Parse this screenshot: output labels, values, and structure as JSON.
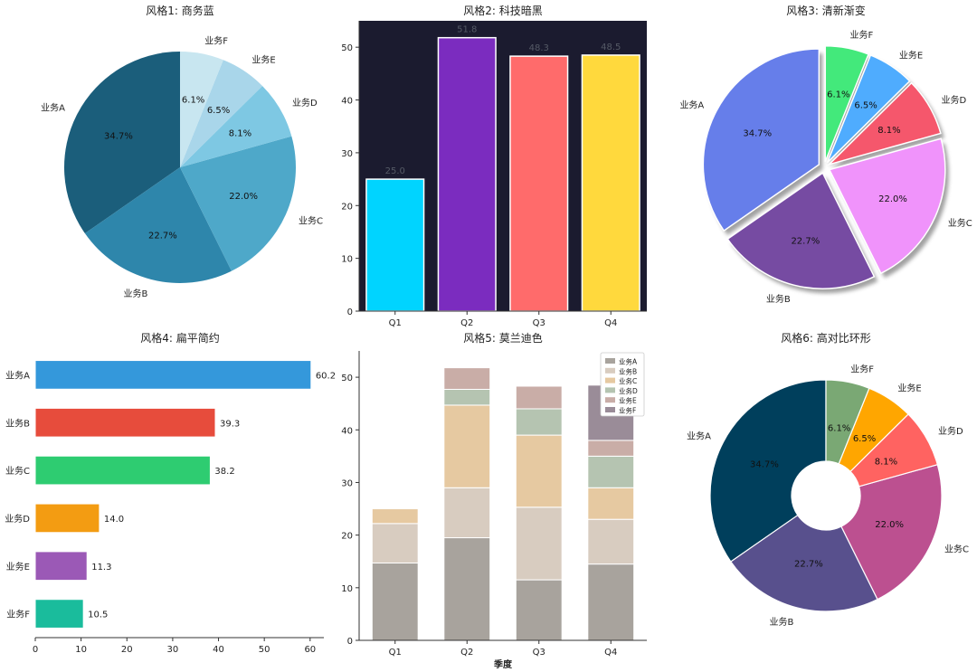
{
  "chart_data": [
    {
      "type": "pie",
      "title": "风格1: 商务蓝",
      "labels": [
        "业务A",
        "业务B",
        "业务C",
        "业务D",
        "业务E",
        "业务F"
      ],
      "values": [
        34.7,
        22.7,
        22.0,
        8.1,
        6.5,
        6.1
      ],
      "pct_labels": [
        "34.7%",
        "22.7%",
        "22.0%",
        "8.1%",
        "6.5%",
        "6.1%"
      ],
      "colors": [
        "#1b5e7b",
        "#2e86ab",
        "#4ea8c9",
        "#7ec8e3",
        "#a9d6ea",
        "#c8e6f0"
      ]
    },
    {
      "type": "bar",
      "title": "风格2: 科技暗黑",
      "categories": [
        "Q1",
        "Q2",
        "Q3",
        "Q4"
      ],
      "values": [
        25.0,
        51.8,
        48.3,
        48.5
      ],
      "value_labels": [
        "25.0",
        "51.8",
        "48.3",
        "48.5"
      ],
      "colors": [
        "#00d4ff",
        "#7b2cbf",
        "#ff6b6b",
        "#ffd93d"
      ],
      "background": "#1b1b2f",
      "ylim": [
        0,
        55
      ],
      "yticks": [
        "0",
        "10",
        "20",
        "30",
        "40",
        "50"
      ]
    },
    {
      "type": "pie",
      "title": "风格3: 清新渐变",
      "labels": [
        "业务A",
        "业务B",
        "业务C",
        "业务D",
        "业务E",
        "业务F"
      ],
      "values": [
        34.7,
        22.7,
        22.0,
        8.1,
        6.5,
        6.1
      ],
      "pct_labels": [
        "34.7%",
        "22.7%",
        "22.0%",
        "8.1%",
        "6.5%",
        "6.1%"
      ],
      "colors": [
        "#667eea",
        "#764ba2",
        "#f093fb",
        "#f5576c",
        "#4facfe",
        "#43e97b"
      ],
      "exploded": true,
      "shadow": true
    },
    {
      "type": "bar",
      "orientation": "horizontal",
      "title": "风格4: 扁平简约",
      "categories": [
        "业务A",
        "业务B",
        "业务C",
        "业务D",
        "业务E",
        "业务F"
      ],
      "values": [
        60.2,
        39.3,
        38.2,
        14.0,
        11.3,
        10.5
      ],
      "value_labels": [
        "60.2",
        "39.3",
        "38.2",
        "14.0",
        "11.3",
        "10.5"
      ],
      "colors": [
        "#3498db",
        "#e74c3c",
        "#2ecc71",
        "#f39c12",
        "#9b59b6",
        "#1abc9c"
      ],
      "xlim": [
        0,
        63
      ],
      "xticks": [
        "0",
        "10",
        "20",
        "30",
        "40",
        "50",
        "60"
      ]
    },
    {
      "type": "bar",
      "stacked": true,
      "title": "风格5: 莫兰迪色",
      "xlabel": "季度",
      "categories": [
        "Q1",
        "Q2",
        "Q3",
        "Q4"
      ],
      "series": [
        {
          "name": "业务A",
          "color": "#a8a39d",
          "values": [
            14.7,
            19.5,
            11.5,
            14.5
          ]
        },
        {
          "name": "业务B",
          "color": "#d8ccc0",
          "values": [
            7.5,
            9.5,
            13.8,
            8.5
          ]
        },
        {
          "name": "业务C",
          "color": "#e6c9a1",
          "values": [
            2.8,
            15.7,
            13.7,
            6.0
          ]
        },
        {
          "name": "业务D",
          "color": "#b5c4b1",
          "values": [
            0.0,
            3.0,
            5.0,
            6.0
          ]
        },
        {
          "name": "业务E",
          "color": "#c9ada7",
          "values": [
            0.0,
            4.1,
            4.3,
            3.0
          ]
        },
        {
          "name": "业务F",
          "color": "#9a8c98",
          "values": [
            0.0,
            0.0,
            0.0,
            10.5
          ]
        }
      ],
      "ylim": [
        0,
        55
      ],
      "yticks": [
        "0",
        "10",
        "20",
        "30",
        "40",
        "50"
      ]
    },
    {
      "type": "pie",
      "donut": true,
      "title": "风格6: 高对比环形",
      "labels": [
        "业务A",
        "业务B",
        "业务C",
        "业务D",
        "业务E",
        "业务F"
      ],
      "values": [
        34.7,
        22.7,
        22.0,
        8.1,
        6.5,
        6.1
      ],
      "pct_labels": [
        "34.7%",
        "22.7%",
        "22.0%",
        "8.1%",
        "6.5%",
        "6.1%"
      ],
      "colors": [
        "#003f5c",
        "#58508d",
        "#bc5090",
        "#ff6361",
        "#ffa600",
        "#7aa874"
      ]
    }
  ]
}
